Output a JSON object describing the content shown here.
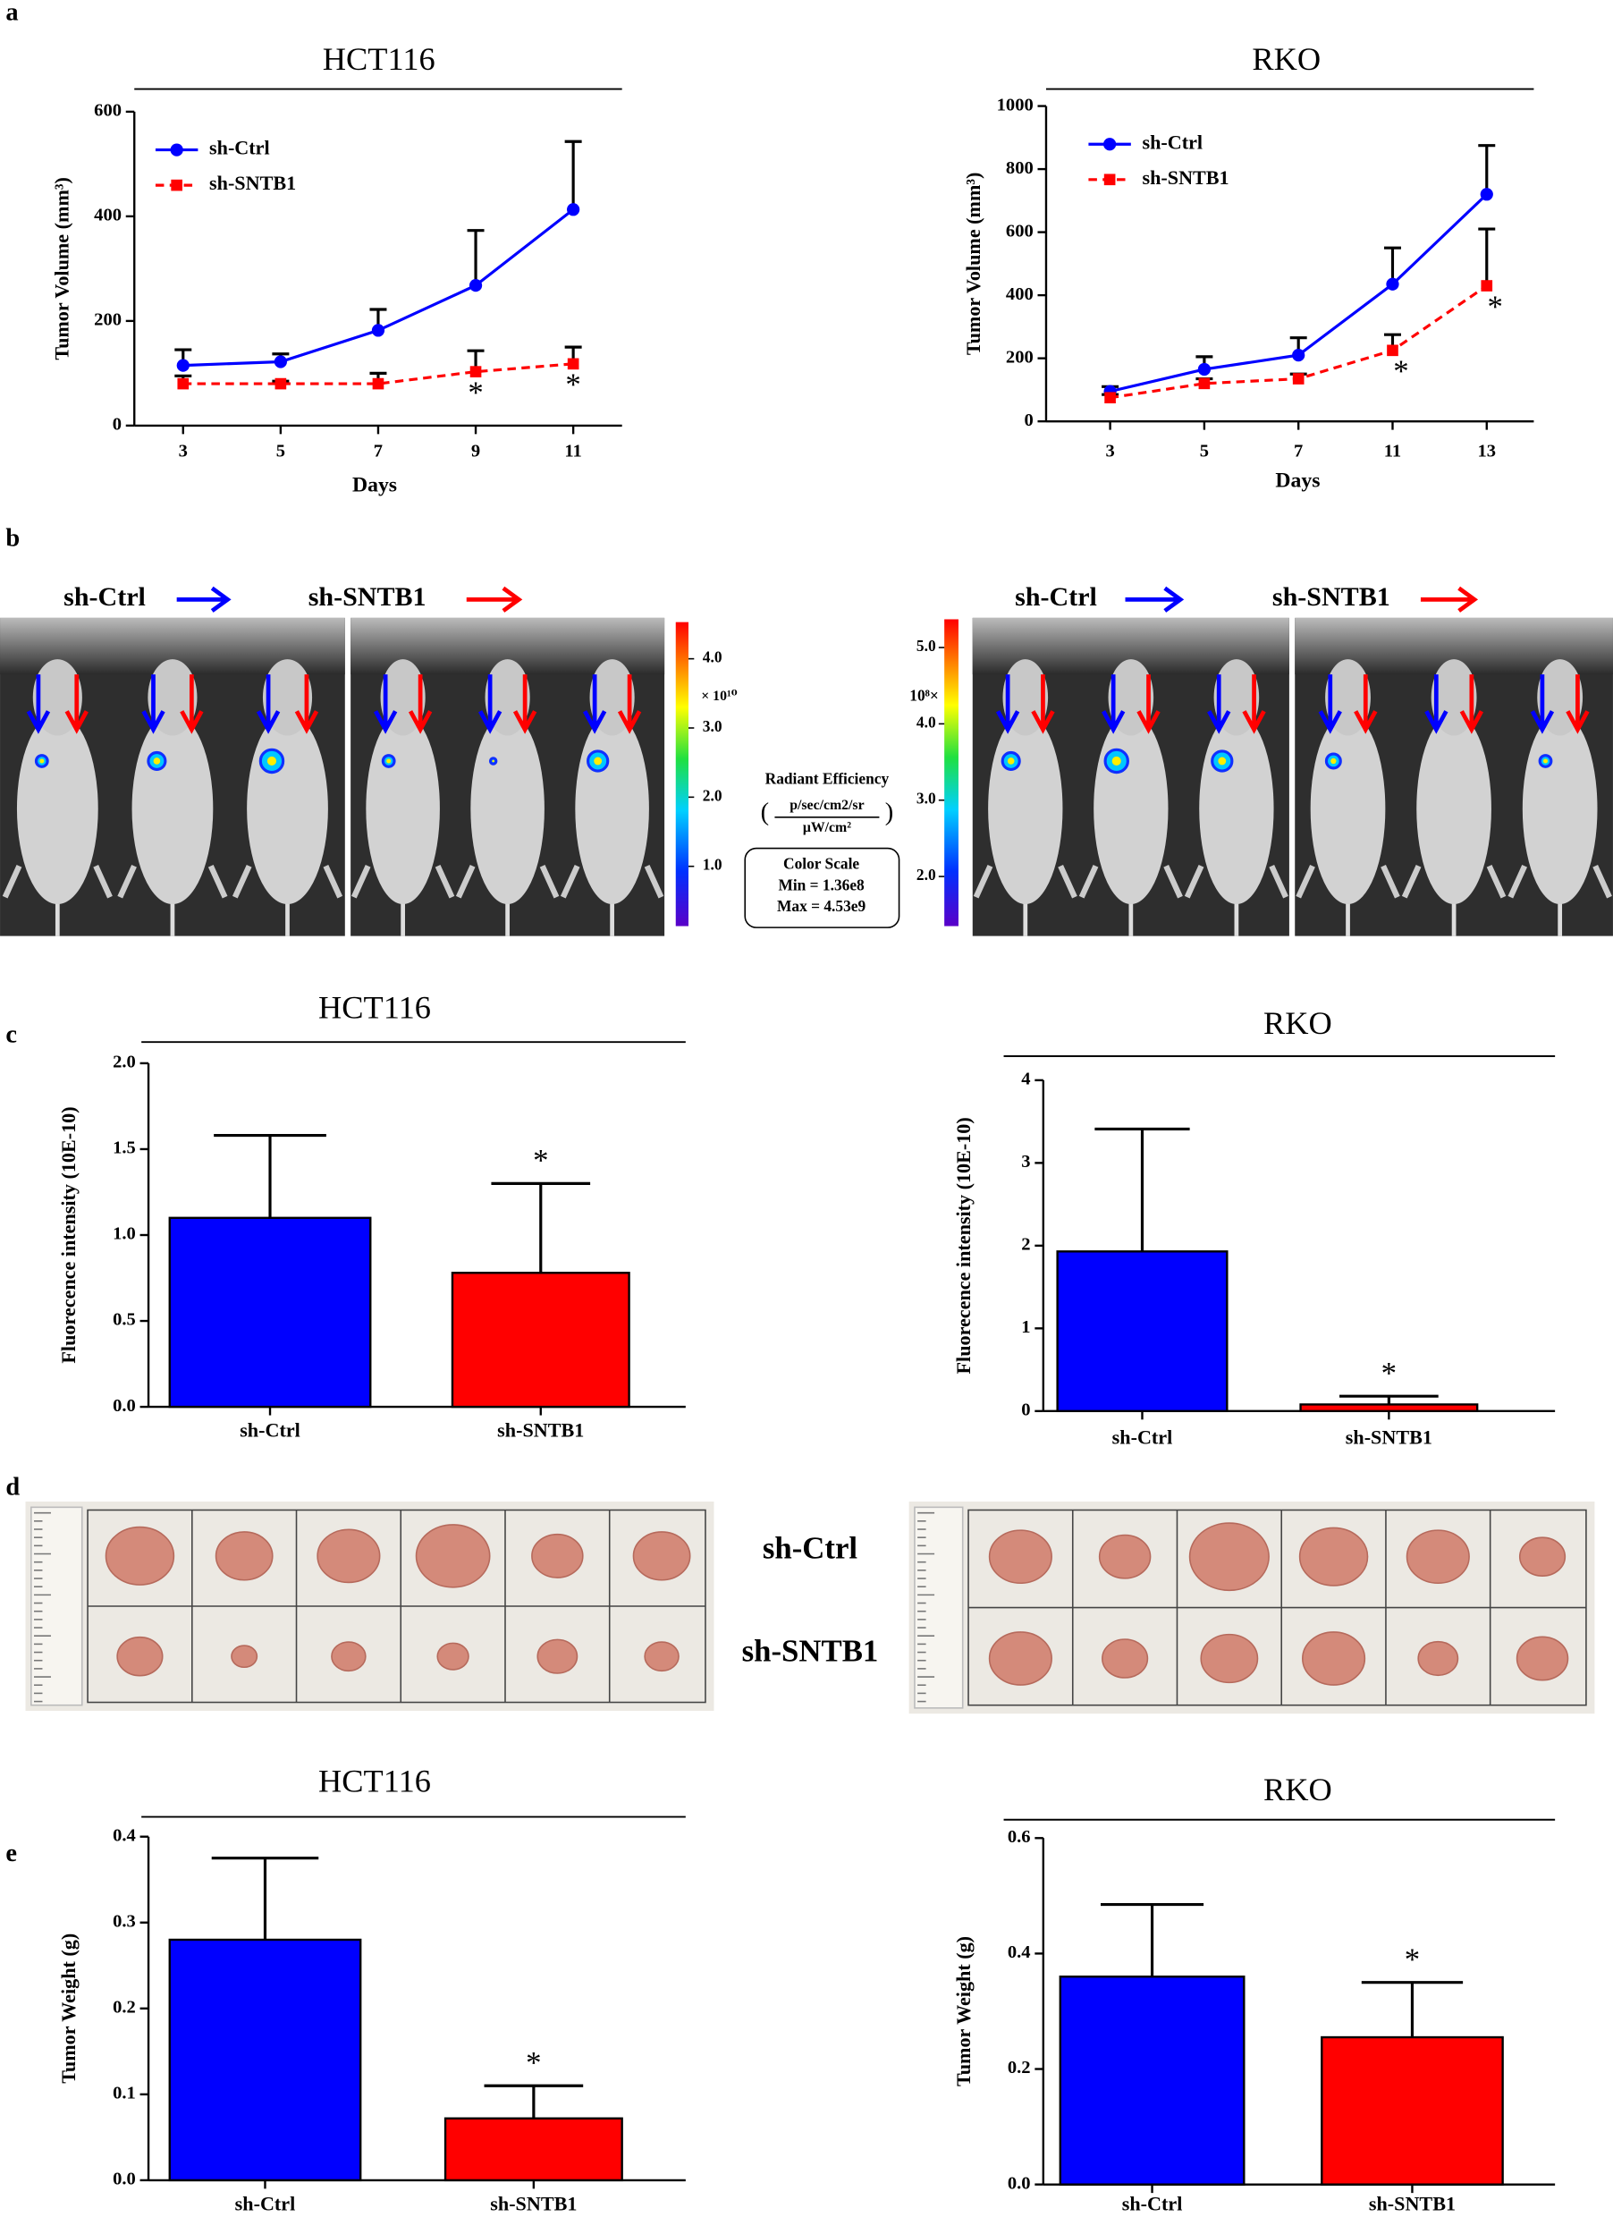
{
  "panel_labels": [
    "a",
    "b",
    "c",
    "d",
    "e"
  ],
  "chart_data": [
    {
      "type": "line",
      "title": "HCT116",
      "x_label": "Days",
      "y_label": "Tumor Volume (mm³)",
      "x": [
        3,
        5,
        7,
        9,
        11
      ],
      "xlim": [
        2,
        12
      ],
      "xticks": [
        3,
        5,
        7,
        9,
        11
      ],
      "ylim": [
        0,
        600
      ],
      "yticks": [
        0,
        200,
        400,
        600
      ],
      "legend": "upper left",
      "series": [
        {
          "name": "sh-Ctrl",
          "color": "#0000ff",
          "line_style": "solid",
          "marker": "circle",
          "values": [
            115,
            122,
            182,
            268,
            413
          ],
          "errors": [
            30,
            15,
            40,
            105,
            130
          ]
        },
        {
          "name": "sh-SNTB1",
          "color": "#ff0000",
          "line_style": "dashed",
          "marker": "square",
          "values": [
            80,
            80,
            80,
            103,
            118
          ],
          "errors": [
            15,
            5,
            20,
            40,
            32
          ],
          "annotations": [
            null,
            null,
            null,
            "*",
            "*"
          ]
        }
      ]
    },
    {
      "type": "line",
      "title": "RKO",
      "x_label": "Days",
      "y_label": "Tumor Volume (mm³)",
      "categories": [
        "3",
        "5",
        "7",
        "11",
        "13"
      ],
      "ylim": [
        0,
        1000
      ],
      "yticks": [
        0,
        200,
        400,
        600,
        800,
        1000
      ],
      "legend": "upper left",
      "series": [
        {
          "name": "sh-Ctrl",
          "color": "#0000ff",
          "line_style": "solid",
          "marker": "circle",
          "values": [
            95,
            165,
            210,
            435,
            720
          ],
          "errors": [
            15,
            40,
            55,
            115,
            155
          ]
        },
        {
          "name": "sh-SNTB1",
          "color": "#ff0000",
          "line_style": "dashed",
          "marker": "square",
          "values": [
            75,
            120,
            135,
            225,
            430
          ],
          "errors": [
            10,
            15,
            15,
            50,
            180
          ],
          "annotations": [
            null,
            null,
            null,
            "*",
            "*"
          ]
        }
      ]
    },
    {
      "type": "bar",
      "title": "HCT116",
      "y_label": "Fluorecence intensity (10E-10)",
      "categories": [
        "sh-Ctrl",
        "sh-SNTB1"
      ],
      "values": [
        1.1,
        0.78
      ],
      "errors": [
        0.48,
        0.52
      ],
      "colors": [
        "#0000ff",
        "#ff0000"
      ],
      "annotations": [
        null,
        "*"
      ],
      "ylim": [
        0,
        2
      ],
      "yticks": [
        {
          "value": 0,
          "label": "0.0"
        },
        0.5,
        {
          "value": 1,
          "label": "1.0"
        },
        1.5,
        {
          "value": 2,
          "label": "2.0"
        }
      ]
    },
    {
      "type": "bar",
      "title": "RKO",
      "y_label": "Fluorecence intensity (10E-10)",
      "categories": [
        "sh-Ctrl",
        "sh-SNTB1"
      ],
      "values": [
        1.93,
        0.08
      ],
      "errors": [
        1.48,
        0.1
      ],
      "colors": [
        "#0000ff",
        "#ff0000"
      ],
      "annotations": [
        null,
        "*"
      ],
      "ylim": [
        0,
        4
      ],
      "yticks": [
        0,
        1,
        2,
        3,
        4
      ]
    },
    {
      "type": "bar",
      "title": "HCT116",
      "y_label": "Tumor Weight (g)",
      "categories": [
        "sh-Ctrl",
        "sh-SNTB1"
      ],
      "values": [
        0.28,
        0.072
      ],
      "errors": [
        0.095,
        0.038
      ],
      "colors": [
        "#0000ff",
        "#ff0000"
      ],
      "annotations": [
        null,
        "*"
      ],
      "ylim": [
        0,
        0.4
      ],
      "yticks": [
        {
          "value": 0,
          "label": "0.0"
        },
        0.1,
        0.2,
        0.3,
        0.4
      ]
    },
    {
      "type": "bar",
      "title": "RKO",
      "y_label": "Tumor Weight (g)",
      "categories": [
        "sh-Ctrl",
        "sh-SNTB1"
      ],
      "values": [
        0.36,
        0.255
      ],
      "errors": [
        0.125,
        0.095
      ],
      "colors": [
        "#0000ff",
        "#ff0000"
      ],
      "annotations": [
        null,
        "*"
      ],
      "ylim": [
        0,
        0.6
      ],
      "yticks": [
        {
          "value": 0,
          "label": "0.0"
        },
        0.2,
        0.4,
        0.6
      ]
    }
  ],
  "imaging": {
    "left_labels": [
      "sh-Ctrl",
      "sh-SNTB1"
    ],
    "right_labels": [
      "sh-Ctrl",
      "sh-SNTB1"
    ],
    "scale_left": {
      "clim": [
        0.136,
        4.53
      ],
      "ticks": [
        {
          "value": 4,
          "label": "4.0"
        },
        {
          "value": 3,
          "label": "3.0"
        },
        {
          "value": 2,
          "label": "2.0"
        },
        {
          "value": 1,
          "label": "1.0"
        }
      ],
      "exponent": "× 10¹⁰"
    },
    "scale_right": {
      "clim": [
        1.35,
        5.37
      ],
      "ticks": [
        {
          "value": 5,
          "label": "5.0"
        },
        {
          "value": 4,
          "label": "4.0"
        },
        {
          "value": 3,
          "label": "3.0"
        },
        {
          "value": 2,
          "label": "2.0"
        }
      ],
      "exponent": "10⁸×"
    },
    "legend": {
      "title": "Radiant Efficiency",
      "numerator": "p/sec/cm2/sr",
      "denominator": "μW/cm²",
      "box_title": "Color Scale",
      "min": "Min = 1.36e8",
      "max": "Max = 4.53e9"
    }
  },
  "tumor_photos": {
    "labels": [
      "sh-Ctrl",
      "sh-SNTB1"
    ]
  }
}
